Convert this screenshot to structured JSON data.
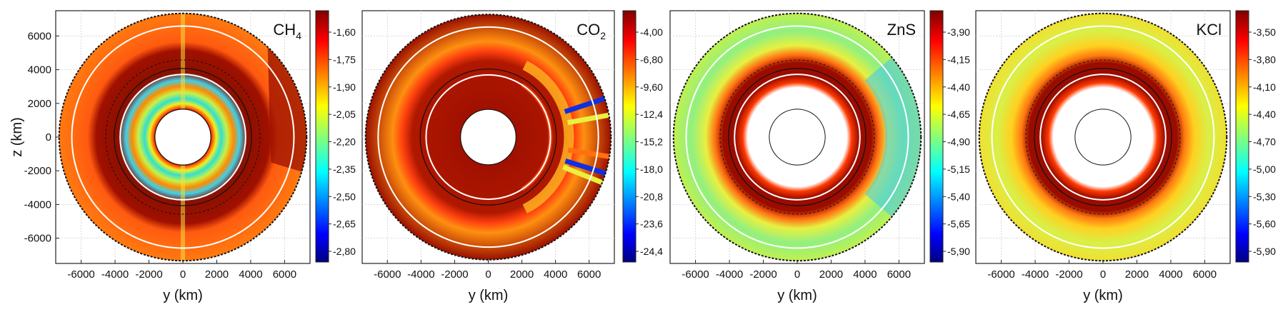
{
  "chart_data": [
    {
      "type": "heatmap",
      "title_main": "CH",
      "title_sub": "4",
      "xlabel": "y (km)",
      "ylabel": "z (km)",
      "xticks": [
        -6000,
        -4000,
        -2000,
        0,
        2000,
        4000,
        6000
      ],
      "yticks": [
        6000,
        4000,
        2000,
        0,
        -2000,
        -4000,
        -6000
      ],
      "xlim": [
        -7500,
        7500
      ],
      "ylim": [
        -7500,
        7500
      ],
      "colorbar_ticks": [
        "-1,60",
        "-1,75",
        "-1,90",
        "-2,05",
        "-2,20",
        "-2,35",
        "-2,50",
        "-2,65",
        "-2,80"
      ],
      "grid": true
    },
    {
      "type": "heatmap",
      "title_main": "CO",
      "title_sub": "2",
      "xlabel": "y (km)",
      "ylabel": "",
      "xticks": [
        -6000,
        -4000,
        -2000,
        0,
        2000,
        4000,
        6000
      ],
      "yticks": [],
      "xlim": [
        -7500,
        7500
      ],
      "ylim": [
        -7500,
        7500
      ],
      "colorbar_ticks": [
        "-4,00",
        "-6,80",
        "-9,60",
        "-12,4",
        "-15,2",
        "-18,0",
        "-20,8",
        "-23,6",
        "-24,4"
      ],
      "grid": true
    },
    {
      "type": "heatmap",
      "title_main": "ZnS",
      "title_sub": "",
      "xlabel": "y (km)",
      "ylabel": "",
      "xticks": [
        -6000,
        -4000,
        -2000,
        0,
        2000,
        4000,
        6000
      ],
      "yticks": [],
      "xlim": [
        -7500,
        7500
      ],
      "ylim": [
        -7500,
        7500
      ],
      "colorbar_ticks": [
        "-3,90",
        "-4,15",
        "-4,40",
        "-4,65",
        "-4,90",
        "-5,15",
        "-5,40",
        "-5,65",
        "-5,90"
      ],
      "grid": true
    },
    {
      "type": "heatmap",
      "title_main": "KCl",
      "title_sub": "",
      "xlabel": "y (km)",
      "ylabel": "",
      "xticks": [
        -6000,
        -4000,
        -2000,
        0,
        2000,
        4000,
        6000
      ],
      "yticks": [],
      "xlim": [
        -7500,
        7500
      ],
      "ylim": [
        -7500,
        7500
      ],
      "colorbar_ticks": [
        "-3,50",
        "-3,80",
        "-4,10",
        "-4,40",
        "-4,70",
        "-5,00",
        "-5,30",
        "-5,60",
        "-5,90"
      ],
      "grid": true
    }
  ],
  "colors": {
    "jet": [
      "#000080",
      "#0000ff",
      "#00ffff",
      "#ffff00",
      "#ff0000",
      "#800000"
    ],
    "ring_white": "#ffffff",
    "contour": "#000000"
  }
}
